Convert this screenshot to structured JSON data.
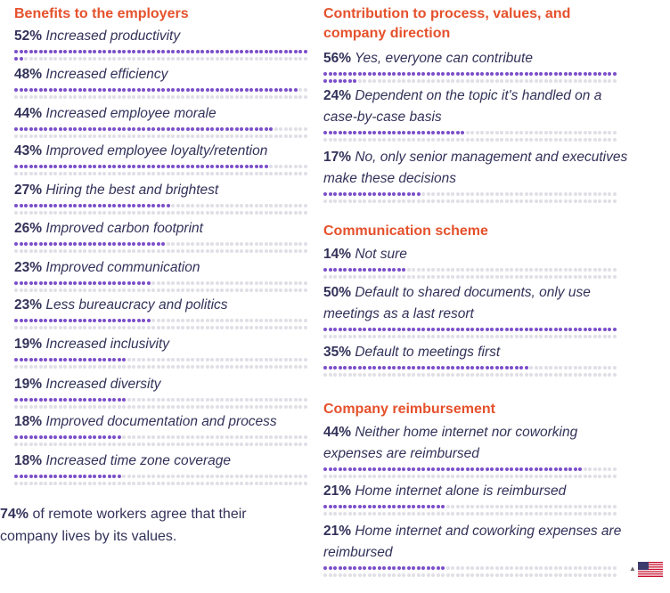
{
  "chart_data": [
    {
      "type": "bar",
      "title": "Benefits to the employers",
      "unit": "%",
      "items": [
        {
          "pct": 52,
          "label": "Increased productivity"
        },
        {
          "pct": 48,
          "label": "Increased efficiency"
        },
        {
          "pct": 44,
          "label": "Increased employee morale"
        },
        {
          "pct": 43,
          "label": "Improved employee loyalty/retention"
        },
        {
          "pct": 27,
          "label": "Hiring the best and brightest"
        },
        {
          "pct": 26,
          "label": "Improved carbon footprint"
        },
        {
          "pct": 23,
          "label": "Improved communication"
        },
        {
          "pct": 23,
          "label": "Less bureaucracy and politics"
        },
        {
          "pct": 19,
          "label": "Increased inclusivity"
        },
        {
          "pct": 19,
          "label": "Increased diversity"
        },
        {
          "pct": 18,
          "label": "Improved documentation and process"
        },
        {
          "pct": 18,
          "label": "Increased time zone coverage"
        }
      ]
    },
    {
      "type": "bar",
      "title": "Contribution to process, values, and company direction",
      "unit": "%",
      "items": [
        {
          "pct": 56,
          "label": "Yes, everyone can contribute"
        },
        {
          "pct": 24,
          "label": "Dependent on the topic it's handled on a case-by-case basis"
        },
        {
          "pct": 17,
          "label": "No, only senior management and executives make these decisions"
        }
      ]
    },
    {
      "type": "bar",
      "title": "Communication scheme",
      "unit": "%",
      "items": [
        {
          "pct": 14,
          "label": "Not sure"
        },
        {
          "pct": 50,
          "label": "Default to shared documents, only use meetings as a last resort"
        },
        {
          "pct": 35,
          "label": "Default to meetings first"
        }
      ]
    },
    {
      "type": "bar",
      "title": "Company reimbursement",
      "unit": "%",
      "items": [
        {
          "pct": 44,
          "label": "Neither home internet nor coworking expenses are reimbursed"
        },
        {
          "pct": 21,
          "label": "Home internet alone is reimbursed"
        },
        {
          "pct": 21,
          "label": "Home internet and coworking expenses are reimbursed"
        }
      ]
    }
  ],
  "summary": {
    "pct": "74%",
    "text": "of remote workers agree that their company lives by its values."
  },
  "colors": {
    "heading": "#e5512c",
    "dot_on": "#7b4fc9",
    "dot_off": "#e0dfe6",
    "text": "#33325a"
  },
  "icons": [
    "us-flag-icon",
    "caret-up-icon"
  ]
}
